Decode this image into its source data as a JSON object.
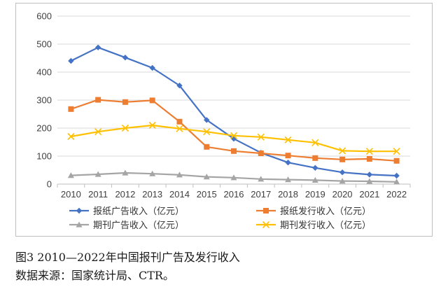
{
  "chart_data": {
    "type": "line",
    "title": "",
    "xlabel": "",
    "ylabel": "",
    "ylim": [
      0,
      600
    ],
    "yticks": [
      0,
      100,
      200,
      300,
      400,
      500,
      600
    ],
    "grid": true,
    "legend_position": "bottom",
    "categories": [
      "2010",
      "2011",
      "2012",
      "2013",
      "2014",
      "2015",
      "2016",
      "2017",
      "2018",
      "2019",
      "2020",
      "2021",
      "2022"
    ],
    "series": [
      {
        "name": "报纸广告收入（亿元）",
        "color": "#4472c4",
        "marker": "diamond",
        "values": [
          440,
          488,
          452,
          415,
          352,
          229,
          162,
          112,
          77,
          58,
          42,
          34,
          30
        ]
      },
      {
        "name": "报纸发行收入（亿元）",
        "color": "#ed7d31",
        "marker": "square",
        "values": [
          268,
          301,
          293,
          299,
          223,
          133,
          118,
          110,
          102,
          93,
          88,
          90,
          83
        ]
      },
      {
        "name": "期刊广告收入（亿元）",
        "color": "#a5a5a5",
        "marker": "triangle",
        "values": [
          31,
          35,
          40,
          37,
          33,
          26,
          23,
          18,
          16,
          14,
          11,
          10,
          8
        ]
      },
      {
        "name": "期刊发行收入（亿元）",
        "color": "#ffc000",
        "marker": "x",
        "values": [
          170,
          187,
          200,
          210,
          198,
          187,
          173,
          168,
          158,
          148,
          119,
          117,
          117
        ]
      }
    ]
  },
  "caption": {
    "title": "图3  2010—2022年中国报刊广告及发行收入",
    "source": "数据来源：国家统计局、CTR。"
  }
}
